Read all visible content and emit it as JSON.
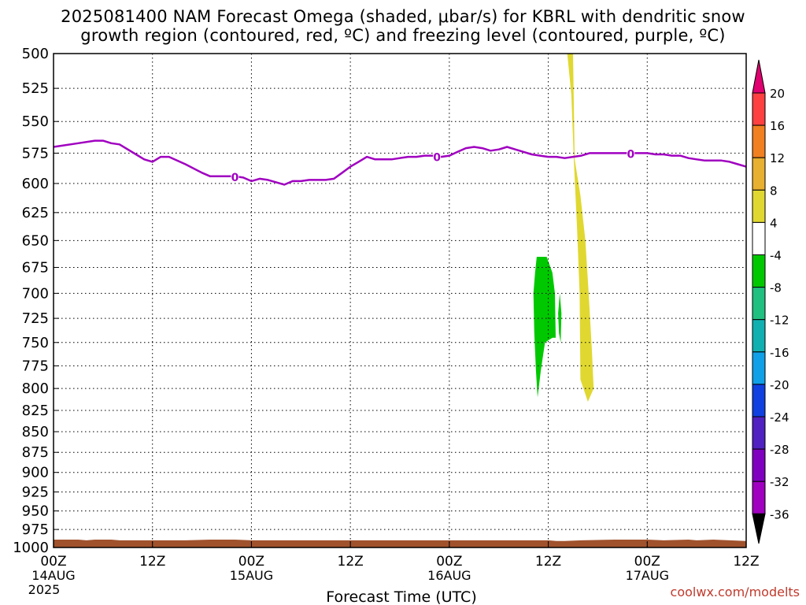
{
  "title_lines": [
    "2025081400 NAM Forecast Omega (shaded, μbar/s) for KBRL with dendritic snow",
    "growth region (contoured, red, ºC) and freezing level (contoured, purple, ºC)"
  ],
  "credit": "coolwx.com/modelts",
  "chart_data": {
    "type": "time-height cross section",
    "title": "2025081400 NAM Forecast Omega (shaded, μbar/s) for KBRL with dendritic snow growth region (contoured, red, ºC) and freezing level (contoured, purple, ºC)",
    "xlabel": "Forecast Time (UTC)",
    "x_range_hours": [
      0,
      84
    ],
    "x_ticks": [
      {
        "hour": 0,
        "label": "00Z",
        "sub": "14AUG",
        "sub2": "2025"
      },
      {
        "hour": 12,
        "label": "12Z"
      },
      {
        "hour": 24,
        "label": "00Z",
        "sub": "15AUG"
      },
      {
        "hour": 36,
        "label": "12Z"
      },
      {
        "hour": 48,
        "label": "00Z",
        "sub": "16AUG"
      },
      {
        "hour": 60,
        "label": "12Z"
      },
      {
        "hour": 72,
        "label": "00Z",
        "sub": "17AUG"
      },
      {
        "hour": 84,
        "label": "12Z"
      }
    ],
    "y_scale": "log-pressure (inverted)",
    "y_range_hpa": [
      1000,
      500
    ],
    "y_ticks": [
      500,
      525,
      550,
      575,
      600,
      625,
      650,
      675,
      700,
      725,
      750,
      775,
      800,
      825,
      850,
      875,
      900,
      925,
      950,
      975,
      1000
    ],
    "grid": true,
    "freezing_level": {
      "color": "#a000c0",
      "contour_label": "0",
      "label_hours": [
        22,
        46.5,
        70
      ],
      "points": [
        [
          0,
          570
        ],
        [
          3,
          567
        ],
        [
          5,
          565
        ],
        [
          6,
          565
        ],
        [
          7,
          567
        ],
        [
          8,
          568
        ],
        [
          10,
          576
        ],
        [
          11,
          580
        ],
        [
          12,
          582
        ],
        [
          13,
          578
        ],
        [
          14,
          578
        ],
        [
          16,
          584
        ],
        [
          18,
          591
        ],
        [
          19,
          594
        ],
        [
          20,
          594
        ],
        [
          21,
          594
        ],
        [
          22,
          594
        ],
        [
          23,
          595
        ],
        [
          24,
          598
        ],
        [
          25,
          596
        ],
        [
          26,
          597
        ],
        [
          27,
          599
        ],
        [
          28,
          601
        ],
        [
          29,
          598
        ],
        [
          30,
          598
        ],
        [
          31,
          597
        ],
        [
          32,
          597
        ],
        [
          33,
          597
        ],
        [
          34,
          596
        ],
        [
          35,
          591
        ],
        [
          36,
          586
        ],
        [
          37,
          582
        ],
        [
          38,
          578
        ],
        [
          39,
          580
        ],
        [
          40,
          580
        ],
        [
          41,
          580
        ],
        [
          42,
          579
        ],
        [
          43,
          578
        ],
        [
          44,
          578
        ],
        [
          45,
          577
        ],
        [
          46,
          577
        ],
        [
          47,
          578
        ],
        [
          48,
          577
        ],
        [
          49,
          574
        ],
        [
          50,
          571
        ],
        [
          51,
          570
        ],
        [
          52,
          571
        ],
        [
          53,
          573
        ],
        [
          54,
          572
        ],
        [
          55,
          570
        ],
        [
          56,
          572
        ],
        [
          57,
          574
        ],
        [
          58,
          576
        ],
        [
          59,
          577
        ],
        [
          60,
          578
        ],
        [
          61,
          578
        ],
        [
          62,
          579
        ],
        [
          63,
          578
        ],
        [
          64,
          577
        ],
        [
          65,
          575
        ],
        [
          66,
          575
        ],
        [
          67,
          575
        ],
        [
          68,
          575
        ],
        [
          69,
          575
        ],
        [
          70,
          575
        ],
        [
          71,
          575
        ],
        [
          72,
          575
        ],
        [
          73,
          576
        ],
        [
          74,
          576
        ],
        [
          75,
          577
        ],
        [
          76,
          577
        ],
        [
          77,
          579
        ],
        [
          78,
          580
        ],
        [
          79,
          581
        ],
        [
          80,
          581
        ],
        [
          81,
          581
        ],
        [
          82,
          582
        ],
        [
          83,
          584
        ],
        [
          84,
          586
        ]
      ]
    },
    "omega_shaded": [
      {
        "range": "4 to 8",
        "color": "#e0d830",
        "polygon": [
          [
            62.3,
            500
          ],
          [
            63.0,
            500
          ],
          [
            63.2,
            580
          ],
          [
            63.9,
            610
          ],
          [
            64.5,
            650
          ],
          [
            64.9,
            700
          ],
          [
            65.3,
            760
          ],
          [
            65.5,
            800
          ],
          [
            64.8,
            815
          ],
          [
            63.9,
            790
          ],
          [
            63.8,
            700
          ],
          [
            63.5,
            640
          ],
          [
            63.1,
            580
          ],
          [
            62.8,
            530
          ]
        ]
      },
      {
        "range": "-8 to -4",
        "color": "#00c800",
        "polygon": [
          [
            58.6,
            665
          ],
          [
            59.8,
            665
          ],
          [
            60.5,
            680
          ],
          [
            60.8,
            700
          ],
          [
            60.9,
            745
          ],
          [
            60.5,
            745
          ],
          [
            59.6,
            750
          ],
          [
            59.1,
            780
          ],
          [
            58.7,
            810
          ],
          [
            58.5,
            780
          ],
          [
            58.3,
            740
          ],
          [
            58.2,
            700
          ],
          [
            58.4,
            680
          ]
        ]
      },
      {
        "range": "-8 to -4",
        "color": "#00c800",
        "polygon": [
          [
            61.4,
            700
          ],
          [
            61.6,
            720
          ],
          [
            61.5,
            750
          ],
          [
            61.3,
            740
          ],
          [
            61.2,
            720
          ]
        ]
      }
    ],
    "terrain": {
      "color": "#a0522d",
      "points": [
        [
          0,
          989
        ],
        [
          3,
          989
        ],
        [
          4,
          990
        ],
        [
          5,
          989
        ],
        [
          7,
          989
        ],
        [
          8,
          990
        ],
        [
          12,
          990
        ],
        [
          16,
          990
        ],
        [
          19,
          989
        ],
        [
          22,
          989
        ],
        [
          24,
          990
        ],
        [
          30,
          990
        ],
        [
          40,
          990
        ],
        [
          48,
          990
        ],
        [
          56,
          990
        ],
        [
          58,
          990
        ],
        [
          60,
          990
        ],
        [
          61,
          991
        ],
        [
          62,
          991
        ],
        [
          64,
          990
        ],
        [
          68,
          989
        ],
        [
          70,
          989
        ],
        [
          72,
          989
        ],
        [
          74,
          990
        ],
        [
          77,
          989
        ],
        [
          78,
          990
        ],
        [
          80,
          989
        ],
        [
          82,
          990
        ],
        [
          84,
          991
        ]
      ]
    },
    "colorbar": {
      "levels": [
        "20",
        "16",
        "12",
        "8",
        "4",
        "-4",
        "-8",
        "-12",
        "-16",
        "-20",
        "-24",
        "-28",
        "-32",
        "-36"
      ],
      "colors": [
        "#e0006f",
        "#ff4040",
        "#f08020",
        "#e8b030",
        "#e0d830",
        "#ffffff",
        "#00c800",
        "#20c080",
        "#10b0b0",
        "#10a0e8",
        "#1040e0",
        "#5020c0",
        "#8000c0",
        "#a000c0",
        "#a8a8a8",
        "#000000"
      ]
    }
  }
}
